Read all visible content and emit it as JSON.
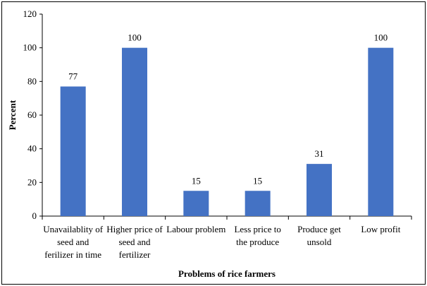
{
  "chart_data": {
    "type": "bar",
    "categories": [
      "Unavailablity of\nseed and\nferilizer in time",
      "Higher price of\nseed and\nfertilizer",
      "Labour problem",
      "Less price to\nthe produce",
      "Produce get\nunsold",
      "Low profit"
    ],
    "values": [
      77,
      100,
      15,
      15,
      31,
      100
    ],
    "color": "#4472c4",
    "x_label": "Problems of rice farmers",
    "y_label": "Percent",
    "ylim": [
      0,
      120
    ],
    "yticks": [
      0,
      20,
      40,
      60,
      80,
      100,
      120
    ],
    "grid": false
  }
}
